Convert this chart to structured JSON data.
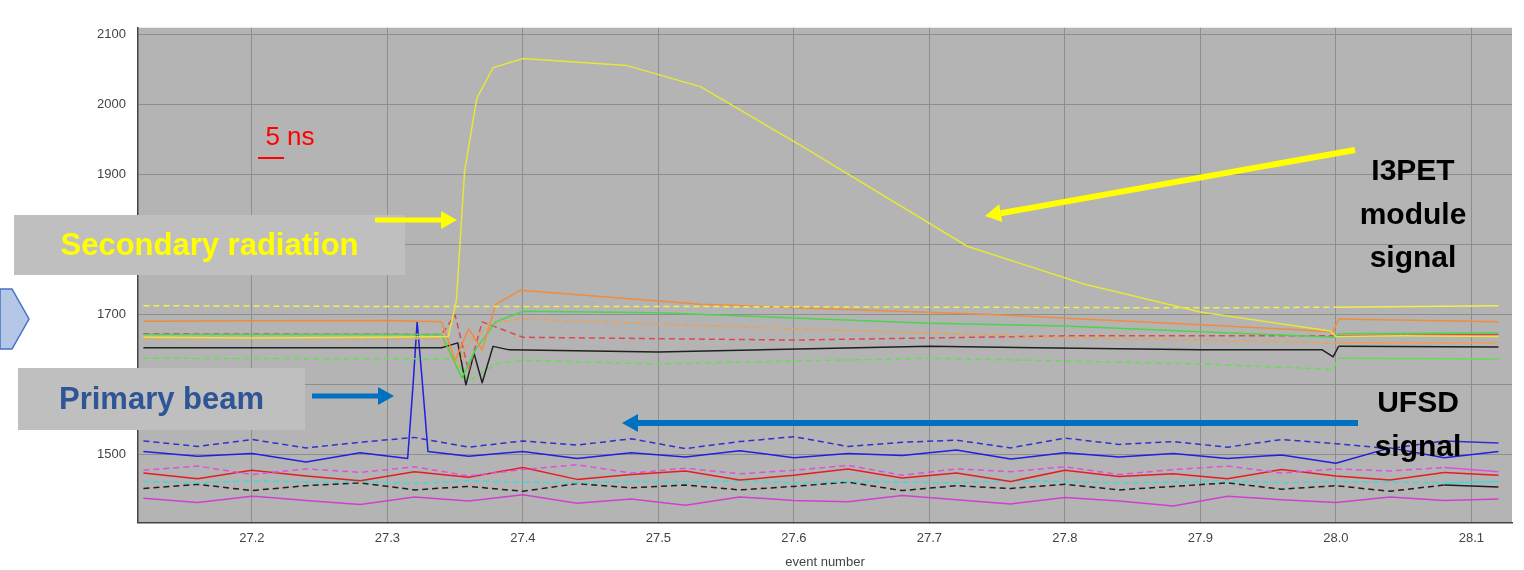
{
  "chart_data": {
    "type": "line",
    "xlabel": "event number",
    "annotations": [
      "5 ns",
      "Secondary radiation",
      "Primary beam",
      "I3PET module signal",
      "UFSD signal"
    ],
    "xlim": [
      27.116,
      28.13
    ],
    "xticks": [
      27.2,
      27.3,
      27.4,
      27.5,
      27.6,
      27.7,
      27.8,
      27.9,
      {
        "value": 28,
        "label": "28.0"
      },
      28.1
    ],
    "ylim": [
      1403,
      2110
    ],
    "yticks": [
      1500,
      {
        "value": 1600,
        "label": null
      },
      1700,
      {
        "value": 1800,
        "label": null
      },
      1900,
      2000,
      2100
    ],
    "grid": true,
    "legend": false,
    "marker": "none",
    "series": [
      {
        "color": "#e6e63c",
        "line_style": "solid",
        "x": [
          27.12,
          27.2,
          27.3,
          27.345,
          27.351,
          27.357,
          27.366,
          27.378,
          27.4,
          27.477,
          27.531,
          27.605,
          27.728,
          27.814,
          27.9,
          27.996,
          28.0,
          28.05,
          28.12
        ],
        "values": [
          1668,
          1667,
          1668,
          1669,
          1721,
          1905,
          2009,
          2053,
          2066,
          2056,
          2026,
          1942,
          1798,
          1744,
          1704,
          1677,
          1669,
          1670,
          1669
        ]
      },
      {
        "color": "#f0f050",
        "line_style": "dashed",
        "x": [
          27.12,
          27.3,
          27.5,
          27.7,
          27.9,
          28.0,
          28.12
        ],
        "values": [
          1713,
          1712,
          1712,
          1711,
          1710,
          1711,
          1713
        ]
      },
      {
        "color": "#f08c3c",
        "line_style": "solid",
        "x": [
          27.12,
          27.3,
          27.34,
          27.35,
          27.36,
          27.37,
          27.38,
          27.398,
          27.531,
          27.74,
          27.9,
          27.998,
          28.002,
          28.12
        ],
        "values": [
          1691,
          1692,
          1690,
          1635,
          1680,
          1650,
          1715,
          1735,
          1715,
          1701,
          1686,
          1676,
          1694,
          1690
        ]
      },
      {
        "color": "#4cd44c",
        "line_style": "solid",
        "x": [
          27.12,
          27.34,
          27.355,
          27.365,
          27.38,
          27.4,
          27.5,
          27.7,
          27.8,
          27.9,
          27.998,
          28.002,
          28.12
        ],
        "values": [
          1672,
          1672,
          1610,
          1650,
          1690,
          1705,
          1703,
          1688,
          1684,
          1676,
          1668,
          1673,
          1674
        ]
      },
      {
        "color": "#f0a050",
        "line_style": "dashed",
        "x": [
          27.12,
          27.34,
          27.352,
          27.36,
          27.38,
          27.4,
          27.6,
          27.8,
          27.998,
          28.002,
          28.12
        ],
        "values": [
          1666,
          1666,
          1625,
          1660,
          1690,
          1694,
          1680,
          1668,
          1660,
          1660,
          1660
        ]
      },
      {
        "color": "#e04848",
        "line_style": "dashed",
        "x": [
          27.12,
          27.34,
          27.35,
          27.36,
          27.37,
          27.4,
          27.6,
          27.8,
          28.0,
          28.12
        ],
        "values": [
          1673,
          1672,
          1700,
          1620,
          1690,
          1668,
          1664,
          1670,
          1670,
          1672
        ]
      },
      {
        "color": "#202020",
        "line_style": "solid",
        "x": [
          27.12,
          27.34,
          27.352,
          27.358,
          27.364,
          27.37,
          27.378,
          27.39,
          27.5,
          27.7,
          27.9,
          27.99,
          27.998,
          28.002,
          28.12
        ],
        "values": [
          1653,
          1653,
          1660,
          1600,
          1645,
          1603,
          1655,
          1650,
          1647,
          1655,
          1650,
          1650,
          1640,
          1655,
          1654
        ]
      },
      {
        "color": "#66dd55",
        "line_style": "dashed",
        "x": [
          27.12,
          27.35,
          27.36,
          27.38,
          27.4,
          27.5,
          27.7,
          27.9,
          27.998,
          28.002,
          28.12
        ],
        "values": [
          1638,
          1637,
          1605,
          1630,
          1635,
          1630,
          1638,
          1630,
          1622,
          1638,
          1637
        ]
      },
      {
        "color": "#3030d0",
        "line_style": "dashed",
        "x": [
          27.12,
          27.16,
          27.2,
          27.24,
          27.28,
          27.32,
          27.36,
          27.4,
          27.44,
          27.48,
          27.52,
          27.56,
          27.6,
          27.64,
          27.68,
          27.72,
          27.76,
          27.8,
          27.84,
          27.88,
          27.92,
          27.96,
          28.0,
          28.04,
          28.08,
          28.12
        ],
        "values": [
          1520,
          1512,
          1522,
          1510,
          1518,
          1525,
          1511,
          1520,
          1514,
          1523,
          1509,
          1519,
          1526,
          1512,
          1518,
          1521,
          1510,
          1524,
          1515,
          1519,
          1511,
          1522,
          1516,
          1509,
          1520,
          1517
        ]
      },
      {
        "color": "#2020e0",
        "line_style": "solid",
        "x": [
          27.12,
          27.16,
          27.2,
          27.24,
          27.28,
          27.315,
          27.319,
          27.322,
          27.326,
          27.33,
          27.36,
          27.4,
          27.44,
          27.48,
          27.52,
          27.56,
          27.6,
          27.64,
          27.68,
          27.72,
          27.76,
          27.8,
          27.84,
          27.88,
          27.92,
          27.96,
          28.0,
          28.04,
          28.08,
          28.12
        ],
        "values": [
          1505,
          1498,
          1502,
          1490,
          1503,
          1495,
          1600,
          1690,
          1600,
          1505,
          1498,
          1505,
          1495,
          1503,
          1497,
          1506,
          1496,
          1502,
          1499,
          1507,
          1494,
          1503,
          1497,
          1502,
          1495,
          1500,
          1488,
          1510,
          1496,
          1505
        ]
      },
      {
        "color": "#e050e0",
        "line_style": "dashed",
        "x": [
          27.12,
          27.16,
          27.2,
          27.24,
          27.28,
          27.32,
          27.36,
          27.4,
          27.44,
          27.48,
          27.52,
          27.56,
          27.6,
          27.64,
          27.68,
          27.72,
          27.76,
          27.8,
          27.84,
          27.88,
          27.92,
          27.96,
          28.0,
          28.04,
          28.08,
          28.12
        ],
        "values": [
          1478,
          1484,
          1472,
          1480,
          1475,
          1483,
          1470,
          1479,
          1486,
          1474,
          1481,
          1473,
          1478,
          1485,
          1471,
          1480,
          1476,
          1483,
          1472,
          1479,
          1484,
          1474,
          1480,
          1477,
          1482,
          1476
        ]
      },
      {
        "color": "#e02020",
        "line_style": "solid",
        "x": [
          27.12,
          27.16,
          27.2,
          27.24,
          27.28,
          27.32,
          27.36,
          27.4,
          27.44,
          27.48,
          27.52,
          27.56,
          27.6,
          27.64,
          27.68,
          27.72,
          27.76,
          27.8,
          27.84,
          27.88,
          27.92,
          27.96,
          28.0,
          28.04,
          28.08,
          28.12
        ],
        "values": [
          1474,
          1466,
          1478,
          1470,
          1463,
          1476,
          1468,
          1482,
          1465,
          1472,
          1477,
          1464,
          1471,
          1480,
          1467,
          1474,
          1462,
          1478,
          1469,
          1473,
          1466,
          1479,
          1470,
          1464,
          1475,
          1471
        ]
      },
      {
        "color": "#40d8d8",
        "line_style": "dashed",
        "x": [
          27.12,
          27.16,
          27.2,
          27.24,
          27.28,
          27.32,
          27.36,
          27.4,
          27.44,
          27.48,
          27.52,
          27.56,
          27.6,
          27.64,
          27.68,
          27.72,
          27.76,
          27.8,
          27.84,
          27.88,
          27.92,
          27.96,
          28.0,
          28.04,
          28.08,
          28.12
        ],
        "values": [
          1462,
          1460,
          1463,
          1461,
          1462,
          1459,
          1463,
          1461,
          1460,
          1462,
          1461,
          1463,
          1460,
          1462,
          1461,
          1460,
          1463,
          1462,
          1460,
          1461,
          1463,
          1460,
          1462,
          1461,
          1460,
          1462
        ]
      },
      {
        "color": "#202020",
        "line_style": "dashed",
        "x": [
          27.12,
          27.16,
          27.2,
          27.24,
          27.28,
          27.32,
          27.36,
          27.4,
          27.44,
          27.48,
          27.52,
          27.56,
          27.6,
          27.64,
          27.68,
          27.72,
          27.76,
          27.8,
          27.84,
          27.88,
          27.92,
          27.96,
          28.0,
          28.04,
          28.08,
          28.12
        ],
        "values": [
          1452,
          1458,
          1449,
          1456,
          1460,
          1450,
          1455,
          1448,
          1459,
          1453,
          1457,
          1450,
          1455,
          1461,
          1449,
          1456,
          1452,
          1458,
          1450,
          1455,
          1460,
          1451,
          1456,
          1448,
          1457,
          1454
        ]
      },
      {
        "color": "#d040d0",
        "line_style": "solid",
        "x": [
          27.12,
          27.16,
          27.2,
          27.24,
          27.28,
          27.32,
          27.36,
          27.4,
          27.44,
          27.48,
          27.52,
          27.56,
          27.6,
          27.64,
          27.68,
          27.72,
          27.76,
          27.8,
          27.84,
          27.88,
          27.92,
          27.96,
          28.0,
          28.04,
          28.08,
          28.12
        ],
        "values": [
          1438,
          1432,
          1441,
          1435,
          1429,
          1440,
          1434,
          1443,
          1431,
          1437,
          1428,
          1440,
          1435,
          1433,
          1442,
          1436,
          1430,
          1439,
          1434,
          1427,
          1441,
          1436,
          1432,
          1440,
          1435,
          1437
        ]
      }
    ]
  }
}
